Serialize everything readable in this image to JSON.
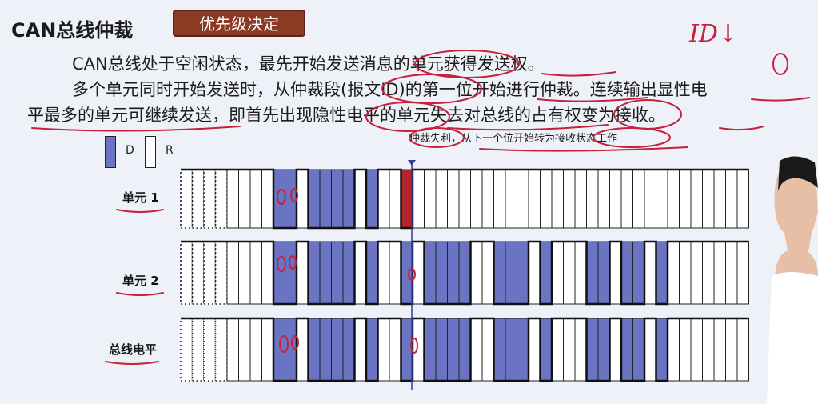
{
  "header": {
    "title": "CAN总线仲裁",
    "tag": "优先级决定"
  },
  "body": {
    "line1": "CAN总线处于空闲状态，最先开始发送消息的单元获得发送权。",
    "line2": "多个单元同时开始发送时，从仲裁段(报文ID)的第一位开始进行仲裁。连续输出显性电",
    "line3": "平最多的单元可继续发送，即首先出现隐性电平的单元失去对总线的占有权变为接收。"
  },
  "diagram": {
    "note": "仲裁失利，从下一个位开始转为接收状态工作",
    "legend": {
      "dominant": "D",
      "recessive": "R"
    },
    "rows": [
      {
        "label": "单元 1"
      },
      {
        "label": "单元 2"
      },
      {
        "label": "总线电平"
      }
    ]
  },
  "colors": {
    "dominant": "#6a74c2",
    "lost_bit": "#b1262a",
    "tag_bg": "#8c3a24",
    "annotation": "#c4213a"
  },
  "annotations": {
    "handwritten": [
      "ID↓",
      "0",
      "0",
      "0",
      "0",
      "0",
      "0",
      "0",
      "0",
      "0",
      "0"
    ]
  }
}
